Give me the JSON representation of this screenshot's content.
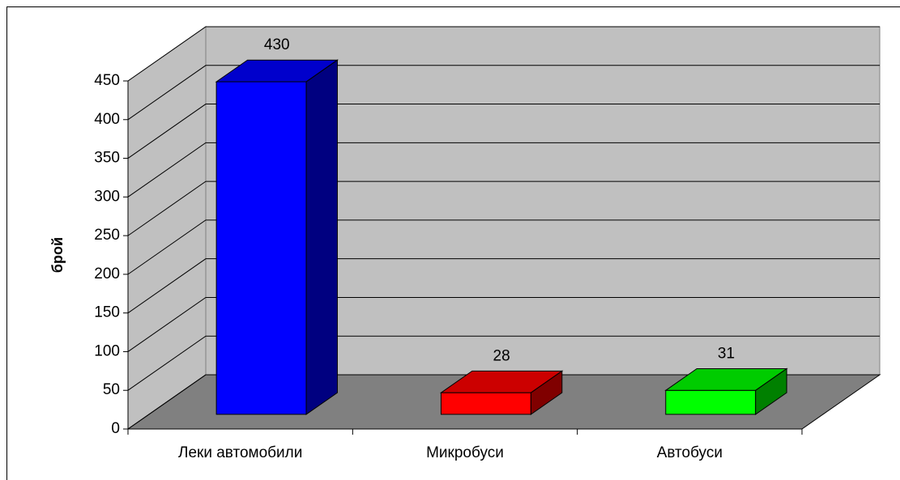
{
  "chart_data": {
    "type": "bar3d",
    "categories": [
      "Леки автомобили",
      "Микробуси",
      "Автобуси"
    ],
    "values": [
      430,
      28,
      31
    ],
    "colors": [
      "#0000ff",
      "#ff0000",
      "#00ff00"
    ],
    "ylabel": "брой",
    "ylim": [
      0,
      450
    ],
    "yticks": [
      0,
      50,
      100,
      150,
      200,
      250,
      300,
      350,
      400,
      450
    ],
    "grid": true
  }
}
